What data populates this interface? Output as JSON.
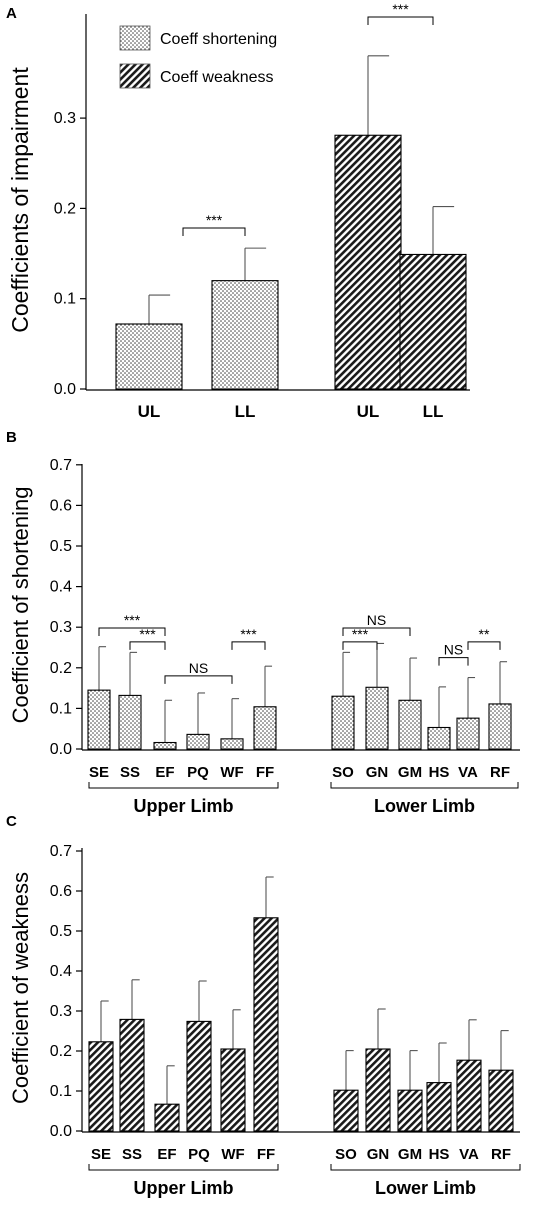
{
  "chart_data": [
    {
      "panel": "A",
      "type": "bar",
      "ylabel": "Coefficients of impairment",
      "ylim": [
        0,
        0.37
      ],
      "yticks": [
        "0.0",
        "0.1",
        "0.2",
        "0.3"
      ],
      "legend": [
        {
          "name": "Coeff shortening",
          "color": "dotted"
        },
        {
          "name": "Coeff weakness",
          "color": "hatched"
        }
      ],
      "bars": [
        {
          "label": "UL",
          "series": "Coeff shortening",
          "value": 0.072,
          "error": 0.032
        },
        {
          "label": "LL",
          "series": "Coeff shortening",
          "value": 0.12,
          "error": 0.036
        },
        {
          "label": "UL",
          "series": "Coeff weakness",
          "value": 0.281,
          "error": 0.088
        },
        {
          "label": "LL",
          "series": "Coeff weakness",
          "value": 0.149,
          "error": 0.053
        }
      ],
      "annotations": [
        {
          "text": "***",
          "from": 0,
          "to": 1
        },
        {
          "text": "***",
          "from": 2,
          "to": 3
        }
      ]
    },
    {
      "panel": "B",
      "type": "bar",
      "ylabel": "Coefficient of shortening",
      "ylim": [
        0,
        0.7
      ],
      "yticks": [
        "0.0",
        "0.1",
        "0.2",
        "0.3",
        "0.4",
        "0.5",
        "0.6",
        "0.7"
      ],
      "groups": [
        "Upper Limb",
        "Lower Limb"
      ],
      "bars": [
        {
          "label": "SE",
          "value": 0.145,
          "error": 0.107
        },
        {
          "label": "SS",
          "value": 0.132,
          "error": 0.106
        },
        {
          "label": "EF",
          "value": 0.016,
          "error": 0.104
        },
        {
          "label": "PQ",
          "value": 0.036,
          "error": 0.102
        },
        {
          "label": "WF",
          "value": 0.025,
          "error": 0.099
        },
        {
          "label": "FF",
          "value": 0.104,
          "error": 0.1
        },
        {
          "label": "SO",
          "value": 0.13,
          "error": 0.108
        },
        {
          "label": "GN",
          "value": 0.152,
          "error": 0.108
        },
        {
          "label": "GM",
          "value": 0.12,
          "error": 0.104
        },
        {
          "label": "HS",
          "value": 0.053,
          "error": 0.1
        },
        {
          "label": "VA",
          "value": 0.076,
          "error": 0.1
        },
        {
          "label": "RF",
          "value": 0.111,
          "error": 0.104
        }
      ],
      "annotations": [
        {
          "text": "***",
          "from": 0,
          "to": 2,
          "level": 0.298
        },
        {
          "text": "***",
          "from": 1,
          "to": 2,
          "level": 0.264
        },
        {
          "text": "NS",
          "from": 2,
          "to": 4,
          "level": 0.18
        },
        {
          "text": "***",
          "from": 4,
          "to": 5,
          "level": 0.264
        },
        {
          "text": "NS",
          "from": 6,
          "to": 8,
          "level": 0.298
        },
        {
          "text": "***",
          "from": 6,
          "to": 7,
          "level": 0.264
        },
        {
          "text": "NS",
          "from": 9,
          "to": 10,
          "level": 0.225
        },
        {
          "text": "**",
          "from": 10,
          "to": 11,
          "level": 0.264
        }
      ]
    },
    {
      "panel": "C",
      "type": "bar",
      "ylabel": "Coefficient of weakness",
      "ylim": [
        0,
        0.7
      ],
      "yticks": [
        "0.0",
        "0.1",
        "0.2",
        "0.3",
        "0.4",
        "0.5",
        "0.6",
        "0.7"
      ],
      "groups": [
        "Upper Limb",
        "Lower Limb"
      ],
      "bars": [
        {
          "label": "SE",
          "value": 0.223,
          "error": 0.102
        },
        {
          "label": "SS",
          "value": 0.279,
          "error": 0.099
        },
        {
          "label": "EF",
          "value": 0.067,
          "error": 0.096
        },
        {
          "label": "PQ",
          "value": 0.274,
          "error": 0.101
        },
        {
          "label": "WF",
          "value": 0.205,
          "error": 0.098
        },
        {
          "label": "FF",
          "value": 0.533,
          "error": 0.102
        },
        {
          "label": "SO",
          "value": 0.102,
          "error": 0.099
        },
        {
          "label": "GN",
          "value": 0.205,
          "error": 0.1
        },
        {
          "label": "GM",
          "value": 0.102,
          "error": 0.099
        },
        {
          "label": "HS",
          "value": 0.121,
          "error": 0.099
        },
        {
          "label": "VA",
          "value": 0.177,
          "error": 0.101
        },
        {
          "label": "RF",
          "value": 0.152,
          "error": 0.099
        }
      ]
    }
  ]
}
